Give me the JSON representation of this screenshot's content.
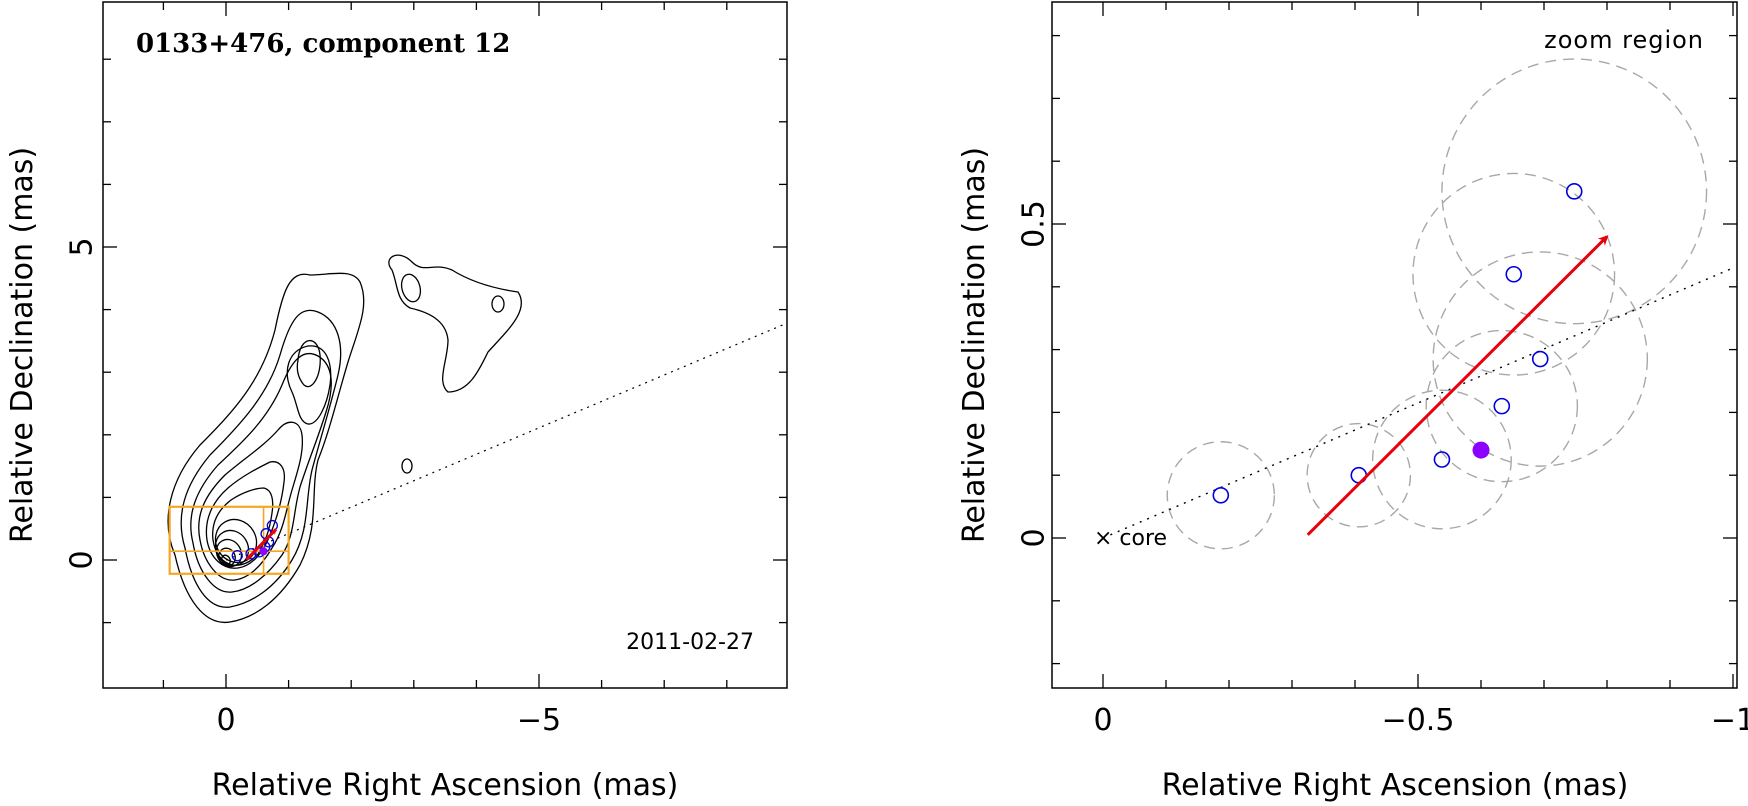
{
  "colors": {
    "frame": "#000000",
    "contour": "#000000",
    "zoom_box": "#F5A623",
    "arrow": "#E8000A",
    "epoch_marker": "#0000DD",
    "current_marker": "#8B00FF",
    "error_circle": "#A8A8A8",
    "trajectory": "#000000"
  },
  "chart_data": [
    {
      "type": "scatter",
      "panel": "left",
      "title": "0133+476, component 12",
      "xlabel": "Relative Right Ascension (mas)",
      "ylabel": "Relative Declination (mas)",
      "xlim": [
        2,
        -9
      ],
      "ylim": [
        -2,
        9
      ],
      "x_reversed": true,
      "xticks": [
        {
          "value": 0,
          "label": "0"
        },
        {
          "value": -5,
          "label": "−5"
        }
      ],
      "yticks": [
        {
          "value": 0,
          "label": "0"
        },
        {
          "value": 5,
          "label": "5"
        }
      ],
      "annotation": "2011-02-27",
      "contours": "total-intensity contour map",
      "zoom_box": {
        "x": [
          0.9,
          -1.0
        ],
        "y": [
          -0.22,
          0.85
        ]
      },
      "trajectory_line": {
        "from": [
          0,
          0
        ],
        "to": [
          -9,
          3.8
        ]
      },
      "component_positions": {
        "x": [
          -0.18,
          -0.4,
          -0.53,
          -0.62,
          -0.64,
          -0.68,
          -0.74
        ],
        "y": [
          0.07,
          0.1,
          0.13,
          0.21,
          0.42,
          0.29,
          0.55
        ]
      },
      "current_position": {
        "x": -0.6,
        "y": 0.14
      },
      "velocity_arrow": {
        "from": [
          -0.33,
          0.01
        ],
        "to": [
          -0.8,
          0.49
        ]
      }
    },
    {
      "type": "scatter",
      "panel": "right",
      "title": "zoom region",
      "xlabel": "Relative Right Ascension (mas)",
      "ylabel": "Relative Declination (mas)",
      "xlim": [
        0.03,
        -1.0
      ],
      "ylim": [
        -0.24,
        0.85
      ],
      "x_reversed": true,
      "xticks": [
        {
          "value": 0,
          "label": "0"
        },
        {
          "value": -0.5,
          "label": "−0.5"
        },
        {
          "value": -1,
          "label": "−1"
        }
      ],
      "yticks": [
        {
          "value": 0,
          "label": "0"
        },
        {
          "value": 0.5,
          "label": "0.5"
        }
      ],
      "core_label": "× core",
      "trajectory_line": {
        "from": [
          0,
          0
        ],
        "to": [
          -1.0,
          0.43
        ]
      },
      "components": [
        {
          "x": -0.187,
          "y": 0.068,
          "error_radius": 0.085
        },
        {
          "x": -0.406,
          "y": 0.1,
          "error_radius": 0.082
        },
        {
          "x": -0.538,
          "y": 0.125,
          "error_radius": 0.11
        },
        {
          "x": -0.633,
          "y": 0.21,
          "error_radius": 0.12
        },
        {
          "x": -0.652,
          "y": 0.42,
          "error_radius": 0.16
        },
        {
          "x": -0.694,
          "y": 0.285,
          "error_radius": 0.17
        },
        {
          "x": -0.748,
          "y": 0.552,
          "error_radius": 0.21
        }
      ],
      "current_position": {
        "x": -0.6,
        "y": 0.14
      },
      "velocity_arrow": {
        "from": [
          -0.325,
          0.005
        ],
        "to": [
          -0.8,
          0.48
        ]
      }
    }
  ]
}
